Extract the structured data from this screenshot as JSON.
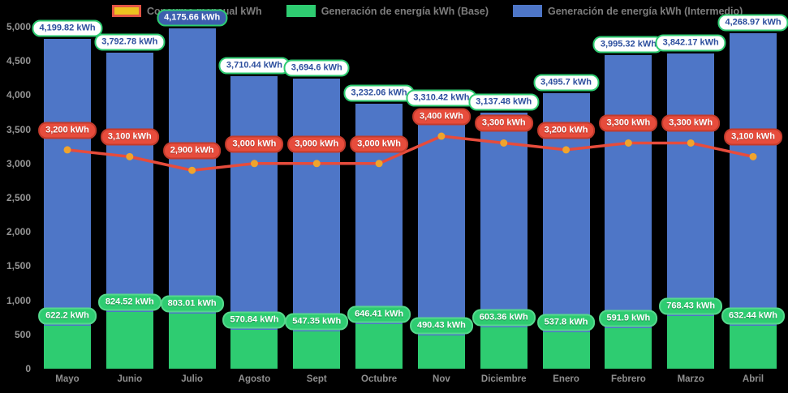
{
  "colors": {
    "background": "#000000",
    "bar_base": "#2ecc71",
    "bar_intermedio": "#4e76c7",
    "line": "#e74c3c",
    "line_marker": "#f0a42c",
    "top_label_text": "#2d4f9e",
    "top_label_border": "#2ecc71",
    "axis_text": "#8f8f8f",
    "legend_text": "#7d7d7d"
  },
  "legend": {
    "items": [
      {
        "label": "Consumo mensual kWh",
        "fill": "#ecc11f",
        "border": "#e25544"
      },
      {
        "label": "Generación de energía kWh (Base)",
        "fill": "#2ecc71",
        "border": "#2ecc71"
      },
      {
        "label": "Generación de energía kWh (Intermedio)",
        "fill": "#4e76c7",
        "border": "#4e76c7"
      }
    ]
  },
  "chart_data": {
    "type": "bar",
    "stacked": true,
    "grid": false,
    "legend_position": "top",
    "ylim": [
      0,
      5000
    ],
    "ytick_step": 500,
    "yticks": [
      {
        "value": 0,
        "label": "0"
      },
      {
        "value": 500,
        "label": "500"
      },
      {
        "value": 1000,
        "label": "1,000"
      },
      {
        "value": 1500,
        "label": "1,500"
      },
      {
        "value": 2000,
        "label": "2,000"
      },
      {
        "value": 2500,
        "label": "2,500"
      },
      {
        "value": 3000,
        "label": "3,000"
      },
      {
        "value": 3500,
        "label": "3,500"
      },
      {
        "value": 4000,
        "label": "4,000"
      },
      {
        "value": 4500,
        "label": "4,500"
      },
      {
        "value": 5000,
        "label": "5,000"
      }
    ],
    "categories": [
      "Mayo",
      "Junio",
      "Julio",
      "Agosto",
      "Sept",
      "Octubre",
      "Nov",
      "Diciembre",
      "Enero",
      "Febrero",
      "Marzo",
      "Abril"
    ],
    "series": [
      {
        "name": "Generación de energía kWh (Base)",
        "render": "bar",
        "color": "#2ecc71",
        "values": [
          622.2,
          824.52,
          803.01,
          570.84,
          547.35,
          646.41,
          490.43,
          603.36,
          537.8,
          591.9,
          768.43,
          632.44
        ],
        "labels": [
          "622.2 kWh",
          "824.52 kWh",
          "803.01 kWh",
          "570.84 kWh",
          "547.35 kWh",
          "646.41 kWh",
          "490.43 kWh",
          "603.36 kWh",
          "537.8 kWh",
          "591.9 kWh",
          "768.43 kWh",
          "632.44 kWh"
        ]
      },
      {
        "name": "Generación de energía kWh (Intermedio)",
        "render": "bar",
        "color": "#4e76c7",
        "values": [
          4199.82,
          3792.78,
          4175.66,
          3710.44,
          3694.6,
          3232.06,
          3310.42,
          3137.48,
          3495.7,
          3995.32,
          3842.17,
          4268.97
        ],
        "labels": [
          "4,199.82 kWh",
          "3,792.78 kWh",
          "4,175.66 kWh",
          "3,710.44 kWh",
          "3,694.6 kWh",
          "3,232.06 kWh",
          "3,310.42 kWh",
          "3,137.48 kWh",
          "3,495.7 kWh",
          "3,995.32 kWh",
          "3,842.17 kWh",
          "4,268.97 kWh"
        ]
      },
      {
        "name": "Consumo mensual kWh",
        "render": "line",
        "color": "#e74c3c",
        "marker_color": "#f0a42c",
        "values": [
          3200,
          3100,
          2900,
          3000,
          3000,
          3000,
          3400,
          3300,
          3200,
          3300,
          3300,
          3100
        ],
        "labels": [
          "3,200 kWh",
          "3,100 kWh",
          "2,900 kWh",
          "3,000 kWh",
          "3,000 kWh",
          "3,000 kWh",
          "3,400 kWh",
          "3,300 kWh",
          "3,200 kWh",
          "3,300 kWh",
          "3,300 kWh",
          "3,100 kWh"
        ]
      }
    ],
    "highlighted_top_label_category": "Julio"
  }
}
